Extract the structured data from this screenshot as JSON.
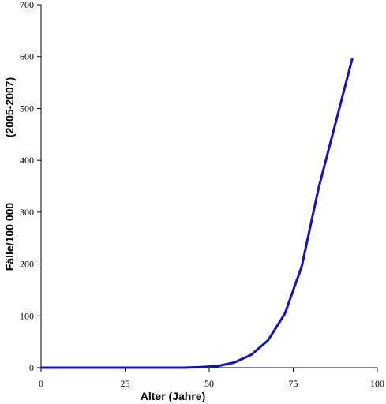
{
  "chart_data": {
    "type": "line",
    "xlabel": "Alter (Jahre)",
    "ylabel_lines": [
      "Fälle/100 000",
      "(2005-2007)"
    ],
    "xlim": [
      0,
      100
    ],
    "ylim": [
      0,
      700
    ],
    "xticks": [
      0,
      25,
      50,
      75,
      100
    ],
    "yticks": [
      0,
      100,
      200,
      300,
      400,
      500,
      600,
      700
    ],
    "grid": false,
    "line_color": "#1111cc",
    "series": [
      {
        "x": [
          0,
          12.5,
          22.5,
          32.5,
          42.5,
          47.5,
          52.5,
          57.5,
          62.5,
          67.5,
          72.5,
          77.5,
          82.5,
          87.5,
          92.5
        ],
        "y": [
          0,
          0,
          0,
          0,
          0,
          1,
          3,
          10,
          25,
          53,
          104,
          195,
          345,
          470,
          595
        ]
      }
    ]
  }
}
